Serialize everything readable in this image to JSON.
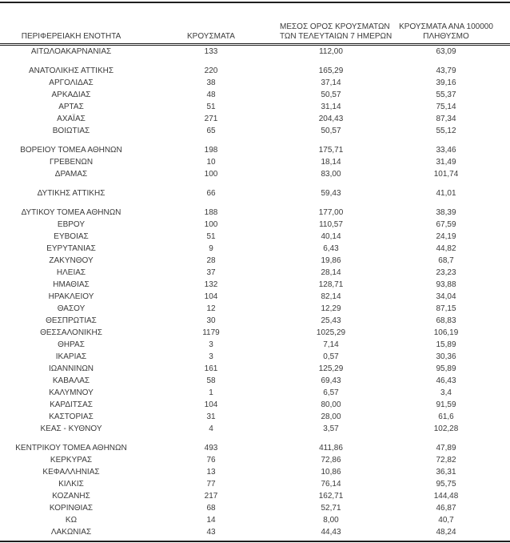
{
  "colors": {
    "background": "#ffffff",
    "text": "#3a3a3a",
    "rule": "#1f1f1f"
  },
  "table": {
    "headers": {
      "region": "ΠΕΡΙΦΕΡΕΙΑΚΗ ΕΝΟΤΗΤΑ",
      "cases": "ΚΡΟΥΣΜΑΤΑ",
      "avg7_line1": "ΜΕΣΟΣ ΟΡΟΣ ΚΡΟΥΣΜΑΤΩΝ",
      "avg7_line2": "ΤΩΝ ΤΕΛΕΥΤΑΙΩΝ 7 ΗΜΕΡΩΝ",
      "per100k_line1": "ΚΡΟΥΣΜΑΤΑ ΑΝΑ 100000",
      "per100k_line2": "ΠΛΗΘΥΣΜΟ"
    },
    "groups": [
      [
        {
          "region": "ΑΙΤΩΛΟΑΚΑΡΝΑΝΙΑΣ",
          "cases": "133",
          "avg7": "112,00",
          "per100k": "63,09"
        }
      ],
      [
        {
          "region": "ΑΝΑΤΟΛΙΚΗΣ ΑΤΤΙΚΗΣ",
          "cases": "220",
          "avg7": "165,29",
          "per100k": "43,79"
        },
        {
          "region": "ΑΡΓΟΛΙΔΑΣ",
          "cases": "38",
          "avg7": "37,14",
          "per100k": "39,16"
        },
        {
          "region": "ΑΡΚΑΔΙΑΣ",
          "cases": "48",
          "avg7": "50,57",
          "per100k": "55,37"
        },
        {
          "region": "ΑΡΤΑΣ",
          "cases": "51",
          "avg7": "31,14",
          "per100k": "75,14"
        },
        {
          "region": "ΑΧΑΪΑΣ",
          "cases": "271",
          "avg7": "204,43",
          "per100k": "87,34"
        },
        {
          "region": "ΒΟΙΩΤΙΑΣ",
          "cases": "65",
          "avg7": "50,57",
          "per100k": "55,12"
        }
      ],
      [
        {
          "region": "ΒΟΡΕΙΟΥ ΤΟΜΕΑ ΑΘΗΝΩΝ",
          "cases": "198",
          "avg7": "175,71",
          "per100k": "33,46"
        },
        {
          "region": "ΓΡΕΒΕΝΩΝ",
          "cases": "10",
          "avg7": "18,14",
          "per100k": "31,49"
        },
        {
          "region": "ΔΡΑΜΑΣ",
          "cases": "100",
          "avg7": "83,00",
          "per100k": "101,74"
        }
      ],
      [
        {
          "region": "ΔΥΤΙΚΗΣ ΑΤΤΙΚΗΣ",
          "cases": "66",
          "avg7": "59,43",
          "per100k": "41,01"
        }
      ],
      [
        {
          "region": "ΔΥΤΙΚΟΥ ΤΟΜΕΑ ΑΘΗΝΩΝ",
          "cases": "188",
          "avg7": "177,00",
          "per100k": "38,39"
        },
        {
          "region": "ΕΒΡΟΥ",
          "cases": "100",
          "avg7": "110,57",
          "per100k": "67,59"
        },
        {
          "region": "ΕΥΒΟΙΑΣ",
          "cases": "51",
          "avg7": "40,14",
          "per100k": "24,19"
        },
        {
          "region": "ΕΥΡΥΤΑΝΙΑΣ",
          "cases": "9",
          "avg7": "6,43",
          "per100k": "44,82"
        },
        {
          "region": "ΖΑΚΥΝΘΟΥ",
          "cases": "28",
          "avg7": "19,86",
          "per100k": "68,7"
        },
        {
          "region": "ΗΛΕΙΑΣ",
          "cases": "37",
          "avg7": "28,14",
          "per100k": "23,23"
        },
        {
          "region": "ΗΜΑΘΙΑΣ",
          "cases": "132",
          "avg7": "128,71",
          "per100k": "93,88"
        },
        {
          "region": "ΗΡΑΚΛΕΙΟΥ",
          "cases": "104",
          "avg7": "82,14",
          "per100k": "34,04"
        },
        {
          "region": "ΘΑΣΟΥ",
          "cases": "12",
          "avg7": "12,29",
          "per100k": "87,15"
        },
        {
          "region": "ΘΕΣΠΡΩΤΙΑΣ",
          "cases": "30",
          "avg7": "25,43",
          "per100k": "68,83"
        },
        {
          "region": "ΘΕΣΣΑΛΟΝΙΚΗΣ",
          "cases": "1179",
          "avg7": "1025,29",
          "per100k": "106,19"
        },
        {
          "region": "ΘΗΡΑΣ",
          "cases": "3",
          "avg7": "7,14",
          "per100k": "15,89"
        },
        {
          "region": "ΙΚΑΡΙΑΣ",
          "cases": "3",
          "avg7": "0,57",
          "per100k": "30,36"
        },
        {
          "region": "ΙΩΑΝΝΙΝΩΝ",
          "cases": "161",
          "avg7": "125,29",
          "per100k": "95,89"
        },
        {
          "region": "ΚΑΒΑΛΑΣ",
          "cases": "58",
          "avg7": "69,43",
          "per100k": "46,43"
        },
        {
          "region": "ΚΑΛΥΜΝΟΥ",
          "cases": "1",
          "avg7": "6,57",
          "per100k": "3,4"
        },
        {
          "region": "ΚΑΡΔΙΤΣΑΣ",
          "cases": "104",
          "avg7": "80,00",
          "per100k": "91,59"
        },
        {
          "region": "ΚΑΣΤΟΡΙΑΣ",
          "cases": "31",
          "avg7": "28,00",
          "per100k": "61,6"
        },
        {
          "region": "ΚΕΑΣ - ΚΥΘΝΟΥ",
          "cases": "4",
          "avg7": "3,57",
          "per100k": "102,28"
        }
      ],
      [
        {
          "region": "ΚΕΝΤΡΙΚΟΥ ΤΟΜΕΑ ΑΘΗΝΩΝ",
          "cases": "493",
          "avg7": "411,86",
          "per100k": "47,89"
        },
        {
          "region": "ΚΕΡΚΥΡΑΣ",
          "cases": "76",
          "avg7": "72,86",
          "per100k": "72,82"
        },
        {
          "region": "ΚΕΦΑΛΛΗΝΙΑΣ",
          "cases": "13",
          "avg7": "10,86",
          "per100k": "36,31"
        },
        {
          "region": "ΚΙΛΚΙΣ",
          "cases": "77",
          "avg7": "76,14",
          "per100k": "95,75"
        },
        {
          "region": "ΚΟΖΑΝΗΣ",
          "cases": "217",
          "avg7": "162,71",
          "per100k": "144,48"
        },
        {
          "region": "ΚΟΡΙΝΘΙΑΣ",
          "cases": "68",
          "avg7": "52,71",
          "per100k": "46,87"
        },
        {
          "region": "ΚΩ",
          "cases": "14",
          "avg7": "8,00",
          "per100k": "40,7"
        },
        {
          "region": "ΛΑΚΩΝΙΑΣ",
          "cases": "43",
          "avg7": "44,43",
          "per100k": "48,24"
        }
      ]
    ]
  }
}
